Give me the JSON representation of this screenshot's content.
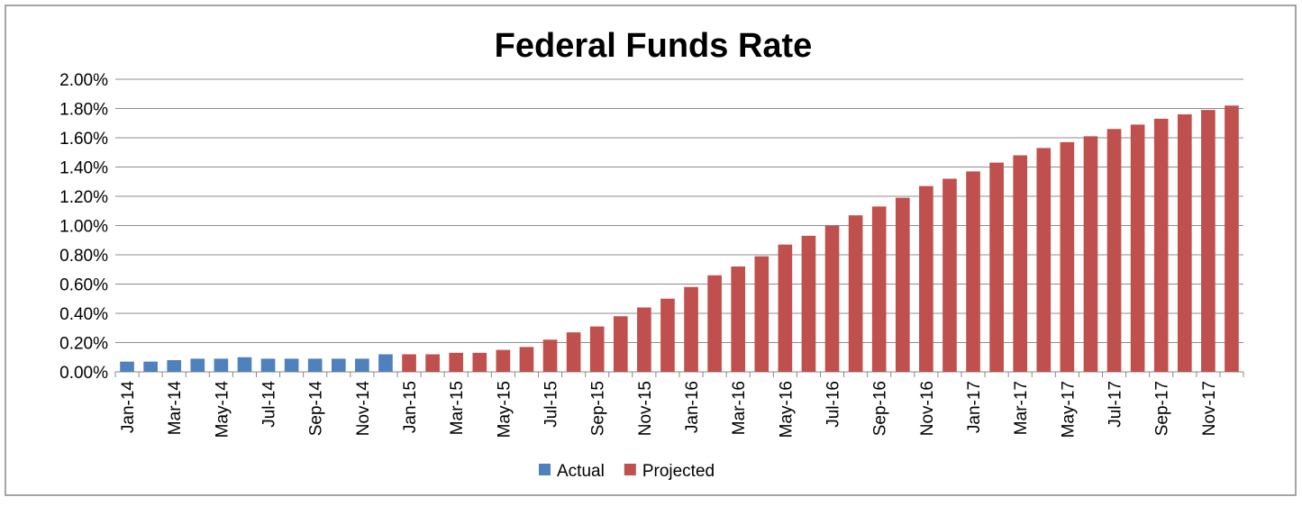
{
  "chart_data": {
    "type": "bar",
    "title": "Federal Funds Rate",
    "categories": [
      "Jan-14",
      null,
      "Mar-14",
      null,
      "May-14",
      null,
      "Jul-14",
      null,
      "Sep-14",
      null,
      "Nov-14",
      null,
      "Jan-15",
      null,
      "Mar-15",
      null,
      "May-15",
      null,
      "Jul-15",
      null,
      "Sep-15",
      null,
      "Nov-15",
      null,
      "Jan-16",
      null,
      "Mar-16",
      null,
      "May-16",
      null,
      "Jul-16",
      null,
      "Sep-16",
      null,
      "Nov-16",
      null,
      "Jan-17",
      null,
      "Mar-17",
      null,
      "May-17",
      null,
      "Jul-17",
      null,
      "Sep-17",
      null,
      "Nov-17",
      null
    ],
    "series": [
      {
        "name": "Actual",
        "color": "#4f81bd",
        "values": [
          0.07,
          0.07,
          0.08,
          0.09,
          0.09,
          0.1,
          0.09,
          0.09,
          0.09,
          0.09,
          0.09,
          0.12,
          null,
          null,
          null,
          null,
          null,
          null,
          null,
          null,
          null,
          null,
          null,
          null,
          null,
          null,
          null,
          null,
          null,
          null,
          null,
          null,
          null,
          null,
          null,
          null,
          null,
          null,
          null,
          null,
          null,
          null,
          null,
          null,
          null,
          null,
          null,
          null
        ]
      },
      {
        "name": "Projected",
        "color": "#c0504d",
        "values": [
          null,
          null,
          null,
          null,
          null,
          null,
          null,
          null,
          null,
          null,
          null,
          null,
          0.12,
          0.12,
          0.13,
          0.13,
          0.15,
          0.17,
          0.22,
          0.27,
          0.31,
          0.38,
          0.44,
          0.5,
          0.58,
          0.66,
          0.72,
          0.79,
          0.87,
          0.93,
          1.0,
          1.07,
          1.13,
          1.19,
          1.27,
          1.32,
          1.37,
          1.43,
          1.48,
          1.53,
          1.57,
          1.61,
          1.66,
          1.69,
          1.73,
          1.76,
          1.79,
          1.82
        ]
      }
    ],
    "ylim": [
      0,
      2
    ],
    "yticks": [
      {
        "value": 0,
        "label": "0.00%"
      },
      {
        "value": 0.2,
        "label": "0.20%"
      },
      {
        "value": 0.4,
        "label": "0.40%"
      },
      {
        "value": 0.6,
        "label": "0.60%"
      },
      {
        "value": 0.8,
        "label": "0.80%"
      },
      {
        "value": 1,
        "label": "1.00%"
      },
      {
        "value": 1.2,
        "label": "1.20%"
      },
      {
        "value": 1.4,
        "label": "1.40%"
      },
      {
        "value": 1.6,
        "label": "1.60%"
      },
      {
        "value": 1.8,
        "label": "1.80%"
      },
      {
        "value": 2,
        "label": "2.00%"
      }
    ],
    "grid": true,
    "legend": "bottom"
  }
}
